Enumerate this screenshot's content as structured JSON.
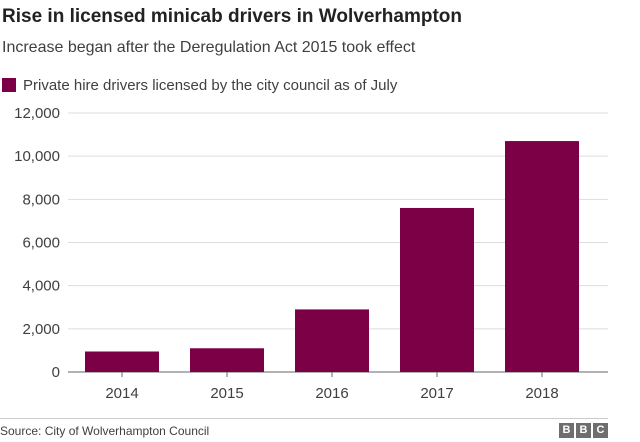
{
  "chart_data": {
    "type": "bar",
    "title": "Rise in licensed minicab drivers in Wolverhampton",
    "subtitle": "Increase began after the Deregulation Act 2015 took effect",
    "legend": "Private hire drivers licensed by the city council as of July",
    "categories": [
      "2014",
      "2015",
      "2016",
      "2017",
      "2018"
    ],
    "values": [
      950,
      1100,
      2900,
      7600,
      10700
    ],
    "yticks": [
      0,
      2000,
      4000,
      6000,
      8000,
      10000,
      12000
    ],
    "ytick_labels": [
      "0",
      "2,000",
      "4,000",
      "6,000",
      "8,000",
      "10,000",
      "12,000"
    ],
    "ylim": [
      0,
      12000
    ],
    "xlabel": "",
    "ylabel": "",
    "grid": true,
    "bar_color": "#7b0046"
  },
  "footer": {
    "source": "Source: City of Wolverhampton Council",
    "logo_letters": [
      "B",
      "B",
      "C"
    ]
  }
}
